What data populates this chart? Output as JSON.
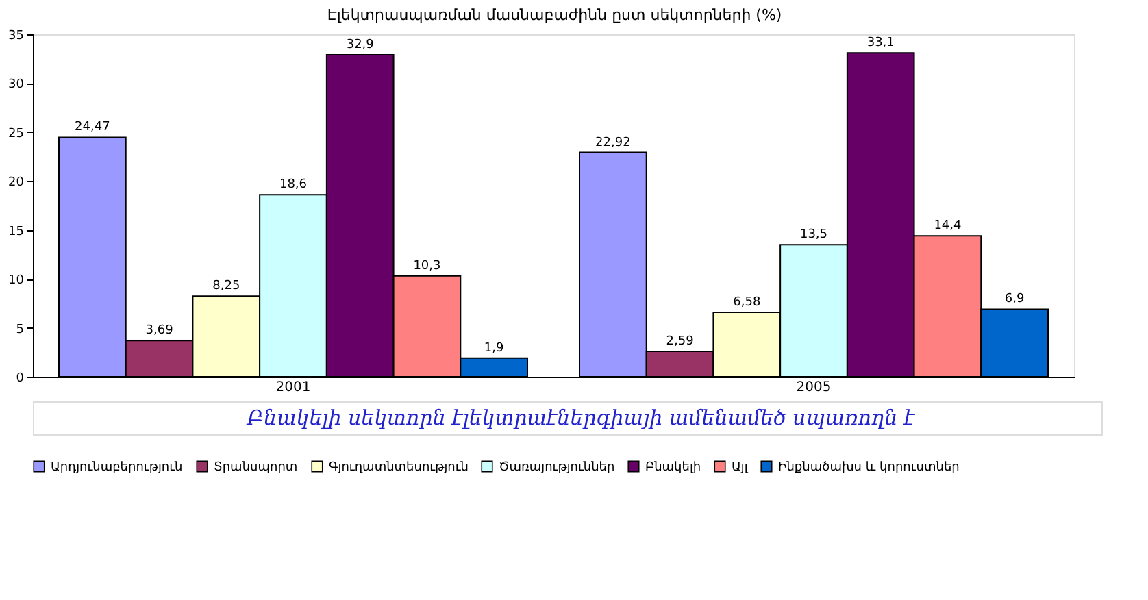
{
  "chart_data": {
    "type": "bar",
    "title": "Էլեկտրասպառման մասնաբաժինն ըստ սեկտորների (%)",
    "categories": [
      "2001",
      "2005"
    ],
    "ylim": [
      0,
      35
    ],
    "yticks": [
      0,
      5,
      10,
      15,
      20,
      25,
      30,
      35
    ],
    "grid": false,
    "legend": "bottom",
    "annotations": [
      "Բնակելի սեկտորն էլեկտրաէներգիայի ամենամեծ սպառողն է"
    ],
    "series": [
      {
        "name": "Արդյունաբերություն",
        "color": "#9999ff",
        "values": [
          24.47,
          22.92
        ],
        "value_labels": [
          "24,47",
          "22,92"
        ]
      },
      {
        "name": "Տրանսպորտ",
        "color": "#993366",
        "values": [
          3.69,
          2.59
        ],
        "value_labels": [
          "3,69",
          "2,59"
        ]
      },
      {
        "name": "Գյուղատնտեսություն",
        "color": "#ffffcc",
        "values": [
          8.25,
          6.58
        ],
        "value_labels": [
          "8,25",
          "6,58"
        ]
      },
      {
        "name": "Ծառայություններ",
        "color": "#ccffff",
        "values": [
          18.6,
          13.5
        ],
        "value_labels": [
          "18,6",
          "13,5"
        ]
      },
      {
        "name": "Բնակելի",
        "color": "#660066",
        "values": [
          32.9,
          33.1
        ],
        "value_labels": [
          "32,9",
          "33,1"
        ]
      },
      {
        "name": "Այլ",
        "color": "#ff8080",
        "values": [
          10.3,
          14.4
        ],
        "value_labels": [
          "10,3",
          "14,4"
        ]
      },
      {
        "name": "Ինքնածախս և կորուստներ",
        "color": "#0066cc",
        "values": [
          1.9,
          6.9
        ],
        "value_labels": [
          "1,9",
          "6,9"
        ]
      }
    ]
  }
}
